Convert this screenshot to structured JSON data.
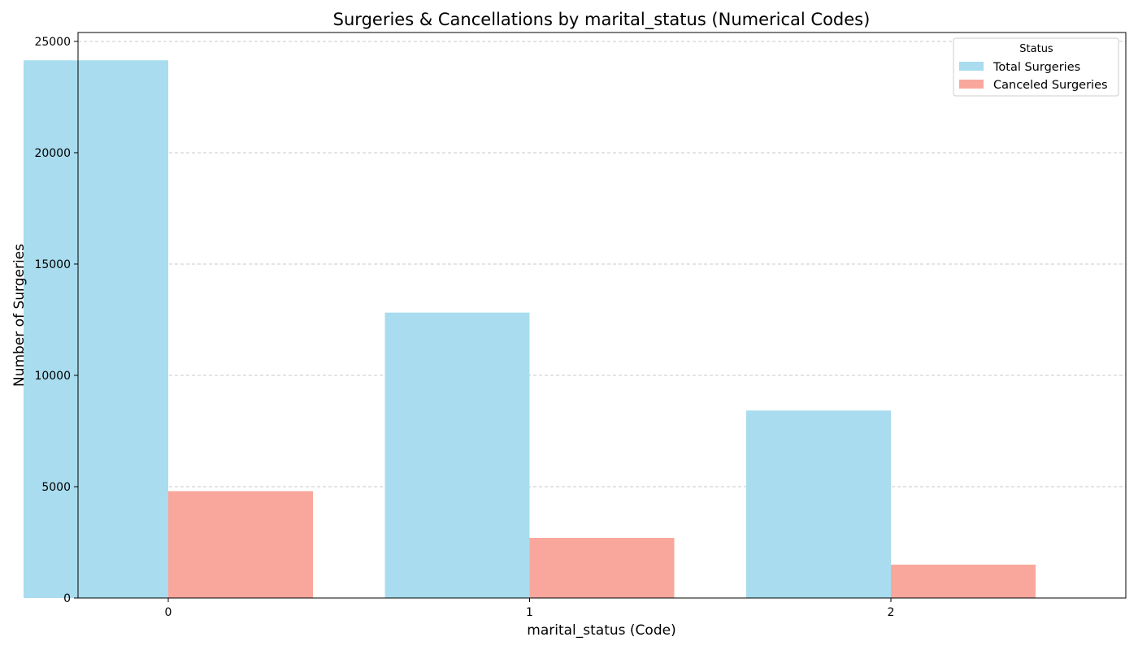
{
  "chart_data": {
    "type": "bar",
    "title": "Surgeries & Cancellations by marital_status (Numerical Codes)",
    "xlabel": "marital_status (Code)",
    "ylabel": "Number of Surgeries",
    "categories": [
      "0",
      "1",
      "2"
    ],
    "series": [
      {
        "name": "Total Surgeries",
        "values": [
          24150,
          12820,
          8420
        ],
        "color": "#a8dcee"
      },
      {
        "name": "Canceled Surgeries",
        "values": [
          4800,
          2700,
          1500
        ],
        "color": "#f9a79c"
      }
    ],
    "ylim": [
      0,
      25400
    ],
    "yticks": [
      0,
      5000,
      10000,
      15000,
      20000,
      25000
    ],
    "grid": true,
    "grid_axis": "y",
    "legend": {
      "title": "Status",
      "placement": "top-right"
    }
  }
}
